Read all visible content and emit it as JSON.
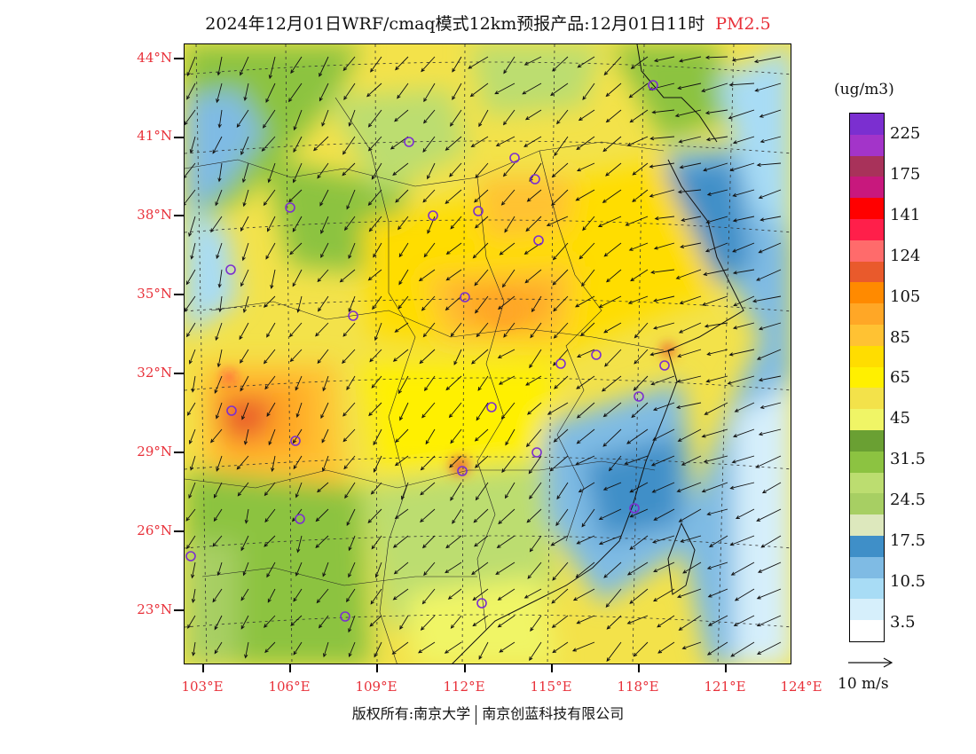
{
  "header": {
    "title": "2024年12月01日WRF/cmaq模式12km预报产品:12月01日11时",
    "species": "PM2.5"
  },
  "map": {
    "lat_labels": [
      "44°N",
      "41°N",
      "38°N",
      "35°N",
      "32°N",
      "29°N",
      "26°N",
      "23°N"
    ],
    "lon_labels": [
      "103°E",
      "106°E",
      "109°E",
      "112°E",
      "115°E",
      "118°E",
      "121°E",
      "124°E"
    ]
  },
  "colorbar": {
    "unit": "(ug/m3)",
    "labels": [
      "225",
      "175",
      "141",
      "124",
      "105",
      "85",
      "65",
      "45",
      "31.5",
      "24.5",
      "17.5",
      "10.5",
      "3.5"
    ],
    "colors": [
      "#7b2fd0",
      "#a334c9",
      "#a8325a",
      "#c8187d",
      "#ff0000",
      "#ff1f4a",
      "#ff6b6b",
      "#e95a2c",
      "#ff8a00",
      "#ffa726",
      "#ffc233",
      "#ffdd00",
      "#fff000",
      "#f3e24a",
      "#f0f566",
      "#6aa033",
      "#8cc341",
      "#bcdd70",
      "#a7cf63",
      "#dde8bd",
      "#3f8fc8",
      "#7fbbe4",
      "#a8dcf5",
      "#d6effb",
      "#ffffff"
    ]
  },
  "wind_reference": {
    "label": "10 m/s"
  },
  "footer": {
    "copyright_left": "版权所有:南京大学",
    "copyright_right": "南京创蓝科技有限公司"
  }
}
